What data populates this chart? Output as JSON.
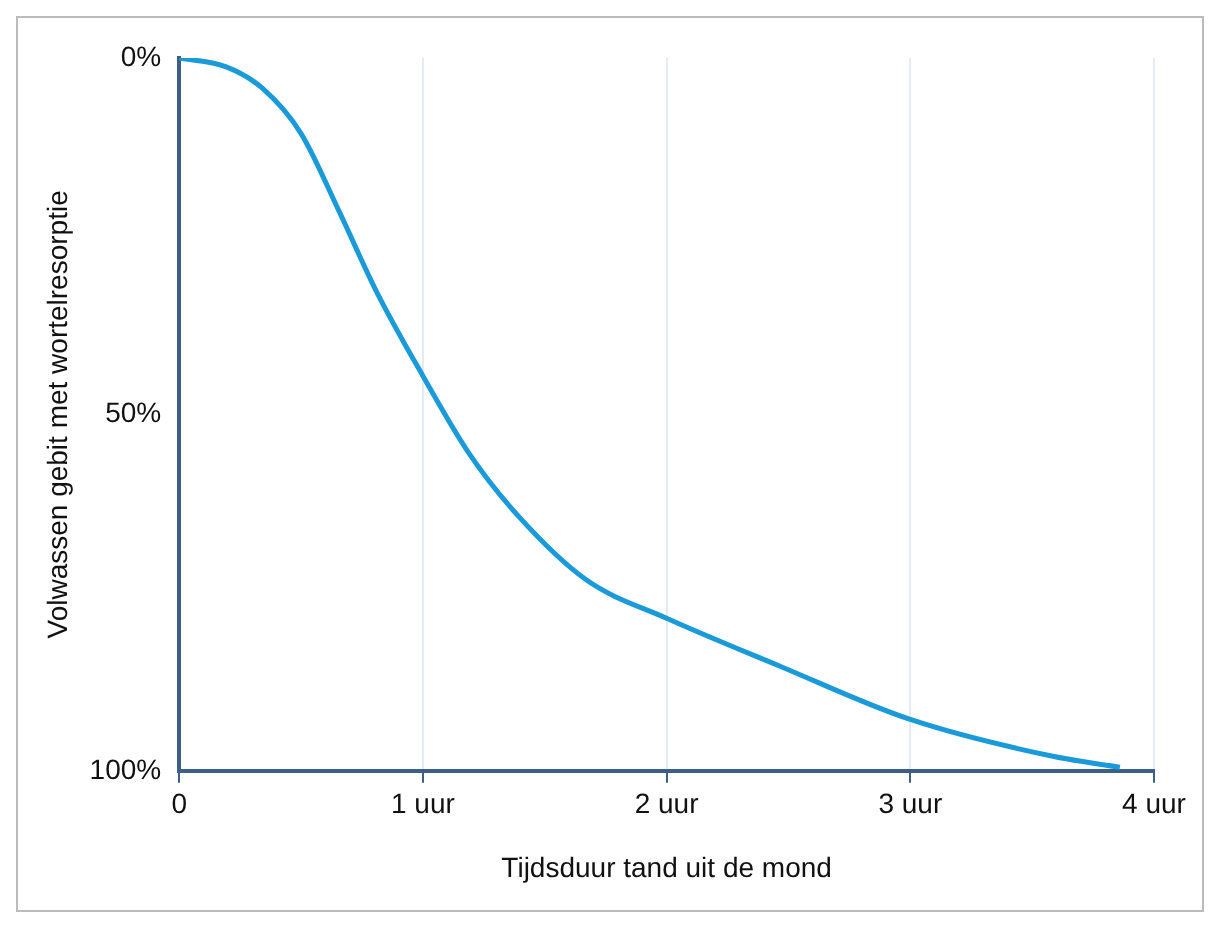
{
  "chart_data": {
    "type": "line",
    "xlabel": "Tijdsduur tand uit de mond",
    "ylabel": "Volwassen gebit met wortelresorptie",
    "series": [
      {
        "color": "#1a9ad9",
        "x": [
          0,
          0.19,
          0.34,
          0.5,
          0.66,
          0.81,
          1,
          1.19,
          1.39,
          1.67,
          2,
          2.47,
          3,
          3.59,
          3.86
        ],
        "values": [
          0,
          1.2,
          4.2,
          10.6,
          21.8,
          32.8,
          44.6,
          55.5,
          64.2,
          73.2,
          78.6,
          85.4,
          92.8,
          98,
          99.5
        ]
      }
    ],
    "xlim": [
      0,
      4
    ],
    "xticks": [
      {
        "value": 0,
        "label": "0"
      },
      {
        "value": 1,
        "label": "1 uur"
      },
      {
        "value": 2,
        "label": "2 uur"
      },
      {
        "value": 3,
        "label": "3 uur"
      },
      {
        "value": 4,
        "label": "4 uur"
      }
    ],
    "ylim": [
      100,
      0
    ],
    "yticks": [
      {
        "value": 0,
        "label": "0%"
      },
      {
        "value": 50,
        "label": "50%"
      },
      {
        "value": 100,
        "label": "100%"
      }
    ],
    "grid": "x",
    "legend": false,
    "marker": "none",
    "line_style": "solid"
  }
}
